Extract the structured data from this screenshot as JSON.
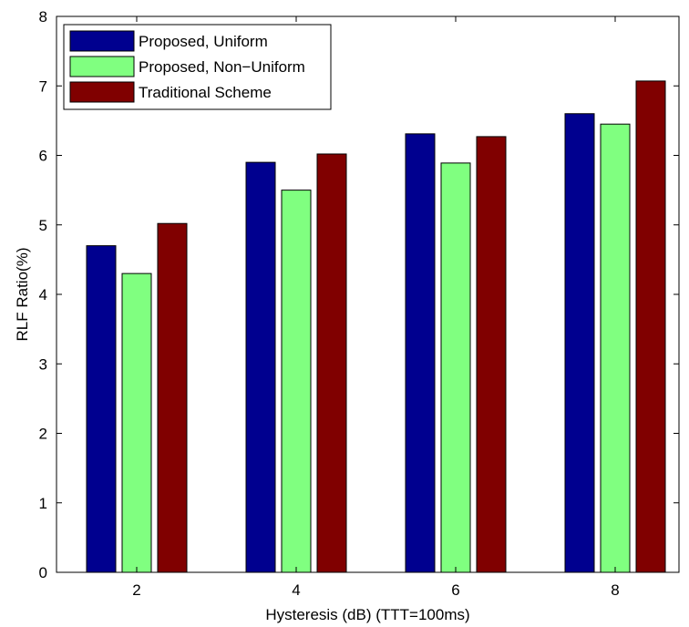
{
  "chart_data": {
    "type": "bar",
    "xlabel": "Hysteresis (dB) (TTT=100ms)",
    "ylabel": "RLF Ratio(%)",
    "categories": [
      "2",
      "4",
      "6",
      "8"
    ],
    "ylim": [
      0,
      8
    ],
    "yticks": [
      "0",
      "1",
      "2",
      "3",
      "4",
      "5",
      "6",
      "7",
      "8"
    ],
    "grid": false,
    "legend_position": "top-left",
    "series": [
      {
        "name": "Proposed, Uniform",
        "color": "#00008f",
        "values": [
          4.7,
          5.9,
          6.31,
          6.6
        ]
      },
      {
        "name": "Proposed, Non−Uniform",
        "color": "#80ff80",
        "values": [
          4.3,
          5.5,
          5.89,
          6.45
        ]
      },
      {
        "name": "Traditional Scheme",
        "color": "#800000",
        "values": [
          5.02,
          6.02,
          6.27,
          7.07
        ]
      }
    ]
  }
}
